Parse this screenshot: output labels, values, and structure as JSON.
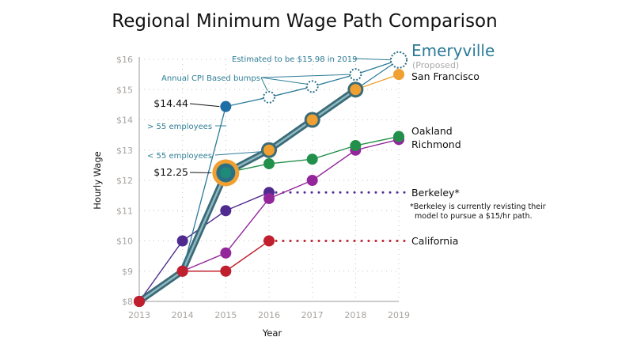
{
  "chart_data": {
    "type": "line",
    "title": "Regional Minimum Wage Path Comparison",
    "xlabel": "Year",
    "ylabel": "Hourly Wage",
    "x": [
      2013,
      2014,
      2015,
      2016,
      2017,
      2018,
      2019
    ],
    "x_tick_labels": [
      "2013",
      "2014",
      "2015",
      "2016",
      "2017",
      "2018",
      "2019"
    ],
    "y_tick_labels": [
      "$8",
      "$9",
      "$10",
      "$11",
      "$12",
      "$13",
      "$14",
      "$15",
      "$16"
    ],
    "ylim": [
      8,
      16
    ],
    "grid": true,
    "series": [
      {
        "name": "California",
        "color": "#c0202e",
        "x": [
          2013,
          2014,
          2015,
          2016
        ],
        "values": [
          8,
          9,
          9,
          10
        ],
        "dotted_extension_to": 2019
      },
      {
        "name": "Berkeley*",
        "color": "#4f2a8f",
        "x": [
          2013,
          2014,
          2015,
          2016
        ],
        "values": [
          8,
          10,
          11,
          11.6
        ],
        "dotted_extension_to": 2019
      },
      {
        "name": "Richmond",
        "color": "#93269a",
        "x": [
          2013,
          2014,
          2015,
          2016,
          2017,
          2018,
          2019
        ],
        "values": [
          8,
          9,
          9.6,
          11.4,
          12,
          13,
          13.35
        ]
      },
      {
        "name": "Oakland",
        "color": "#22904a",
        "x": [
          2015,
          2016,
          2017,
          2018,
          2019
        ],
        "values": [
          12.25,
          12.55,
          12.7,
          13.15,
          13.45
        ]
      },
      {
        "name": "San Francisco",
        "color": "#f0a030",
        "x": [
          2013,
          2014,
          2015,
          2016,
          2017,
          2018,
          2019
        ],
        "values": [
          8,
          9,
          12.25,
          13,
          14,
          15,
          15.5
        ]
      },
      {
        "name": "Emeryville",
        "color": "#2b7a98",
        "x": [
          2013,
          2014,
          2015,
          2016,
          2017,
          2018,
          2019
        ],
        "values": [
          8,
          9,
          14.44,
          14.75,
          15.1,
          15.5,
          15.98
        ],
        "estimated_from": 2016
      }
    ],
    "annotations": {
      "high": "$14.44",
      "low": "$12.25",
      "gt55": "> 55 employees",
      "lt55": "< 55 employees",
      "cpi": "Annual CPI Based bumps",
      "estimate": "Estimated to be $15.98 in 2019"
    },
    "legend_labels": {
      "emeryville": "Emeryville",
      "proposed": "(Proposed)",
      "sf": "San Francisco",
      "oakland": "Oakland",
      "richmond": "Richmond",
      "berkeley": "Berkeley*",
      "footnote1": "*Berkeley is currently revisting their",
      "footnote2": "model to pursue a $15/hr path.",
      "california": "California"
    }
  }
}
